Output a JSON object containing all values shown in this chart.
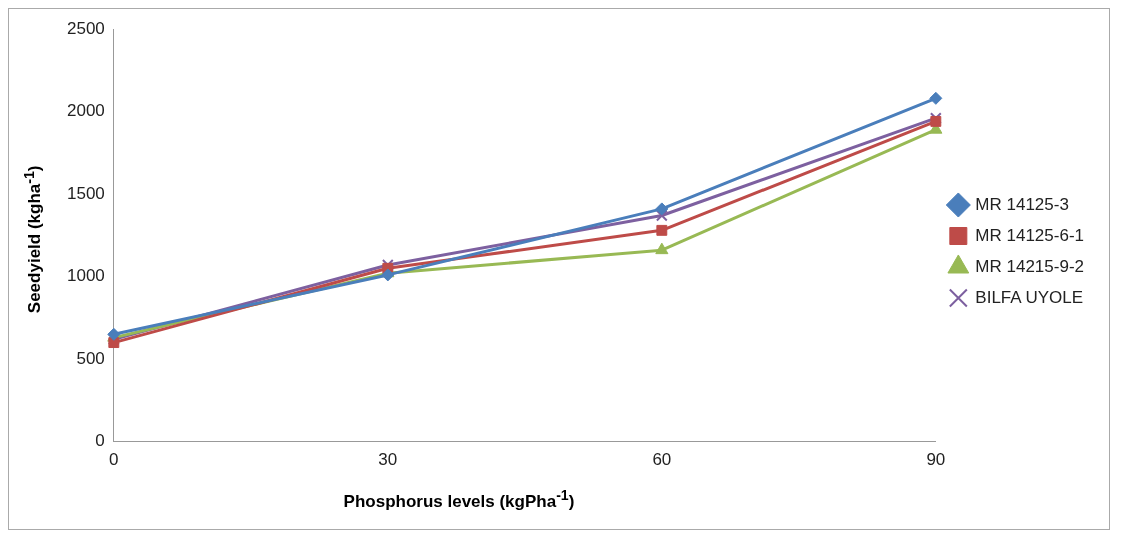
{
  "chart_data": {
    "type": "line",
    "xlabel": "Phosphorus levels (kgPha$^{-1}$)",
    "ylabel": "Seedyield (kgha$^{-1}$)",
    "categories": [
      "0",
      "30",
      "60",
      "90"
    ],
    "series": [
      {
        "name": "MR 14125-3",
        "color": "#4a7ebb",
        "marker": "diamond",
        "values": [
          650,
          1010,
          1410,
          2080
        ]
      },
      {
        "name": "MR 14125-6-1",
        "color": "#be4b48",
        "marker": "square",
        "values": [
          600,
          1050,
          1280,
          1940
        ]
      },
      {
        "name": "MR 14215-9-2",
        "color": "#98b954",
        "marker": "triangle",
        "values": [
          630,
          1020,
          1160,
          1890
        ]
      },
      {
        "name": "BILFA UYOLE",
        "color": "#7d60a0",
        "marker": "cross",
        "values": [
          620,
          1070,
          1370,
          1960
        ]
      }
    ],
    "ylim": [
      0,
      2500
    ],
    "yticks": [
      0,
      500,
      1000,
      1500,
      2000,
      2500
    ],
    "grid": false,
    "legend": "right"
  }
}
